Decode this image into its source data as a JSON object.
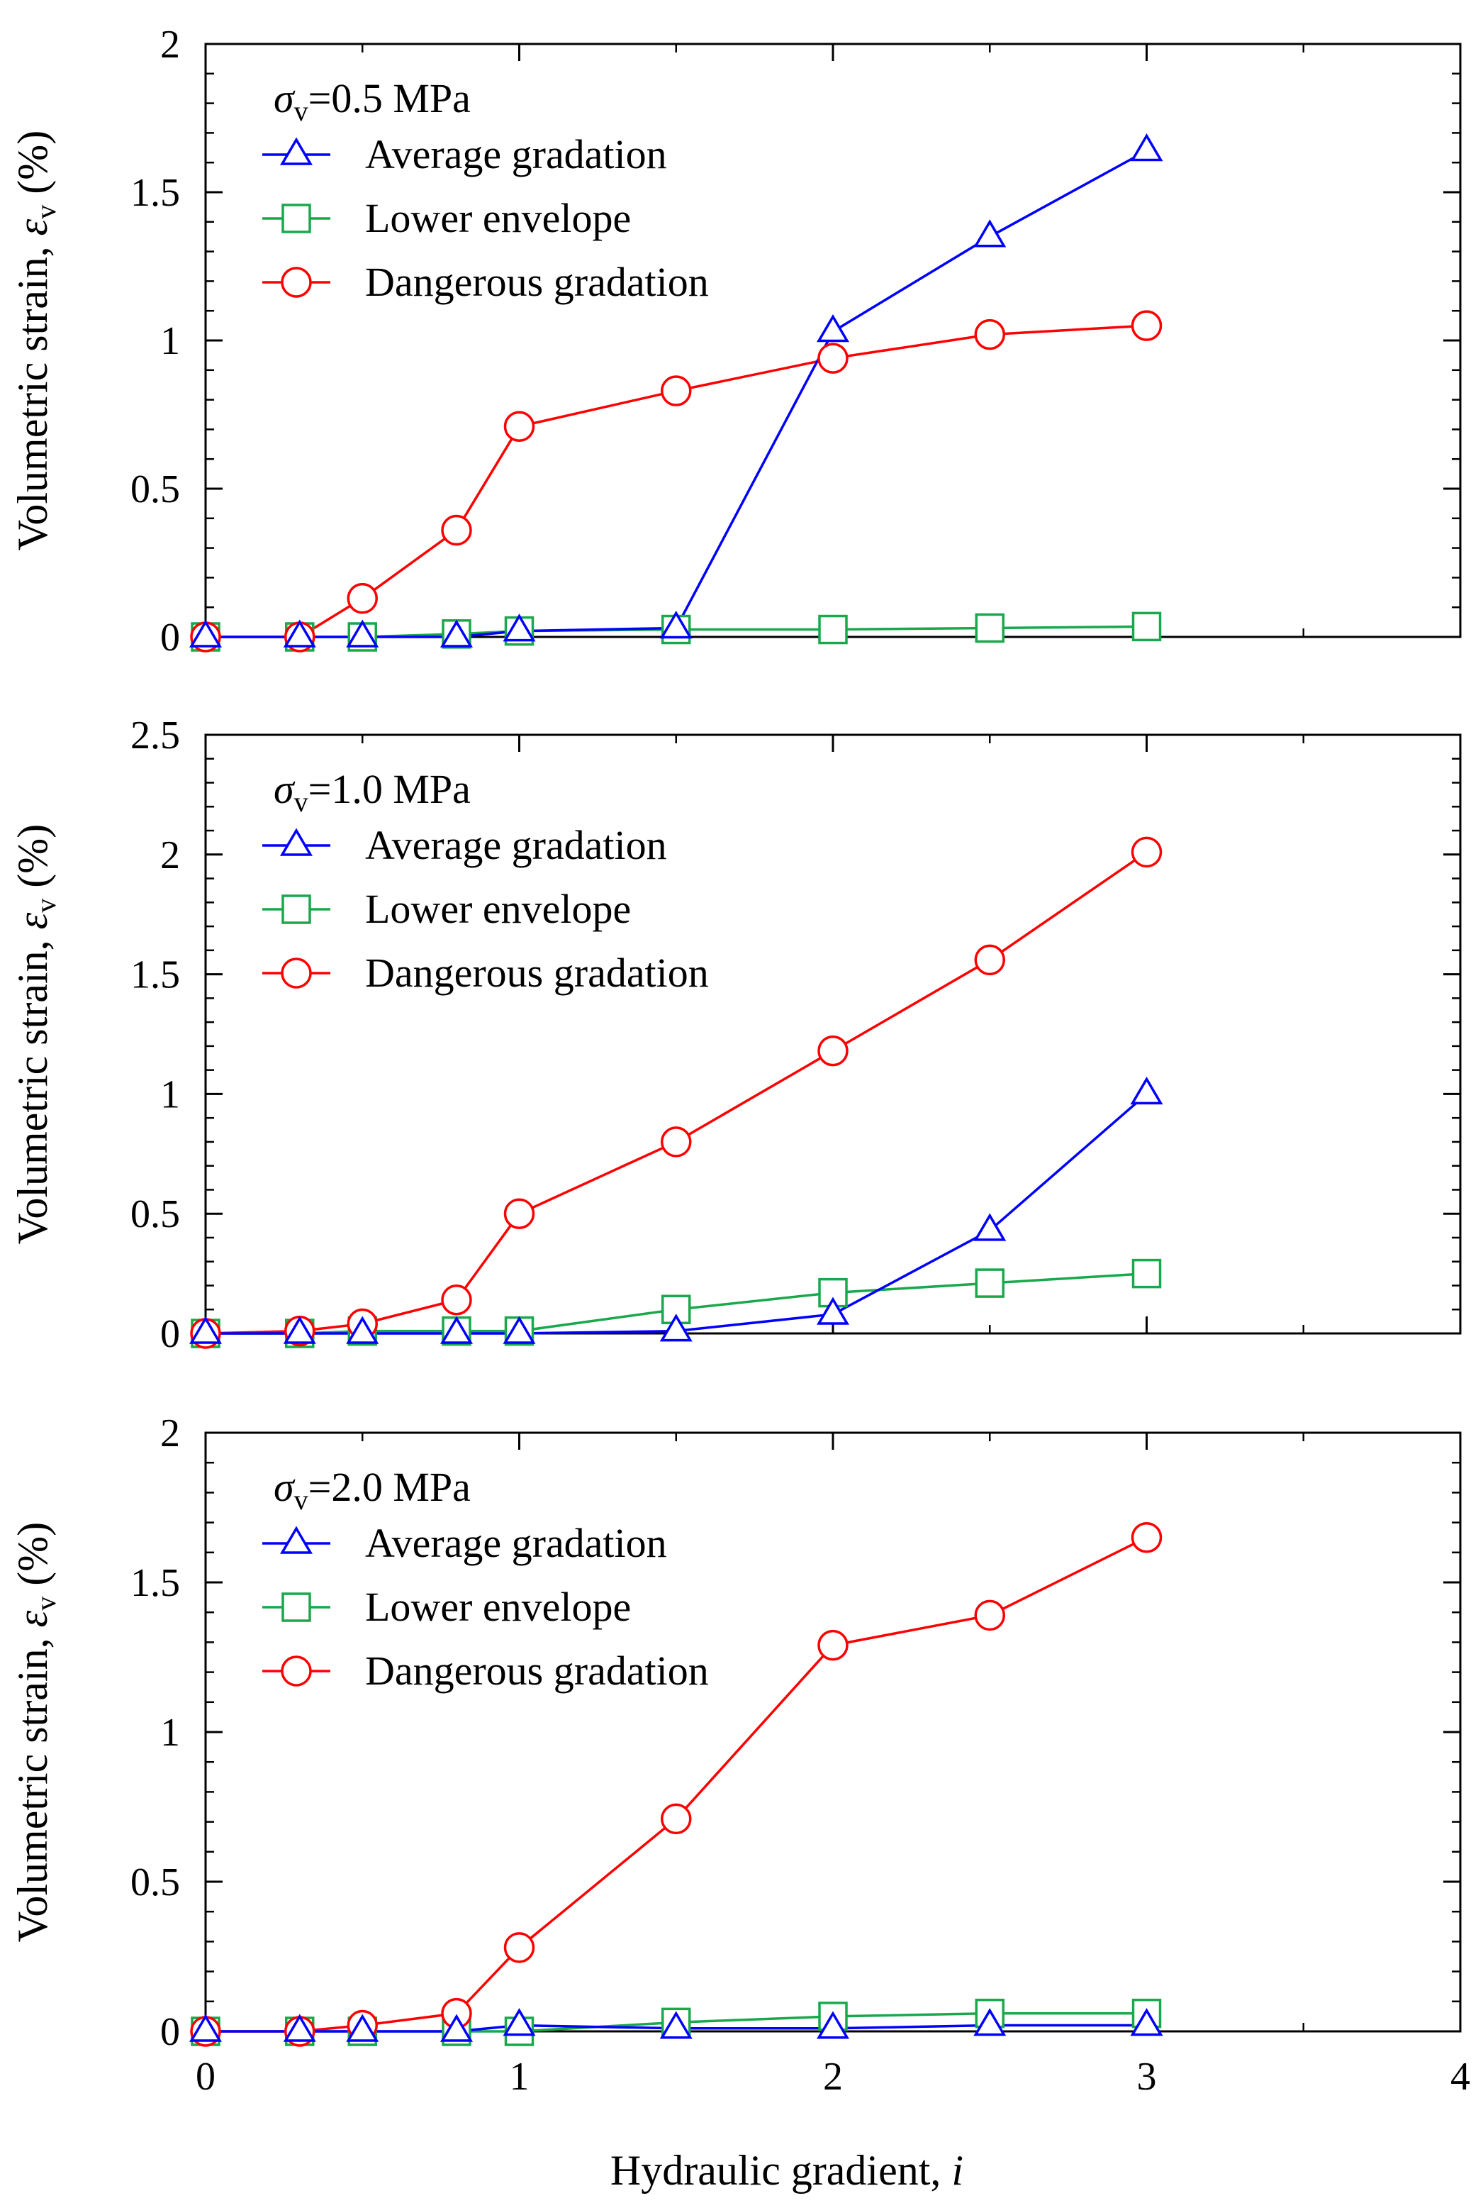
{
  "figure": {
    "xlabel_main": "Hydraulic gradient, ",
    "xlabel_var": "i",
    "x_ticks": [
      "0",
      "1",
      "2",
      "3",
      "4"
    ]
  },
  "chart_data": [
    {
      "type": "line",
      "stress_label": {
        "symbol": "σ",
        "subscript": "v",
        "value": "=0.5 MPa"
      },
      "ylabel": {
        "prefix": "Volumetric strain, ",
        "symbol": "ε",
        "subscript": "v",
        "suffix": " (%)"
      },
      "xlim": [
        0,
        4
      ],
      "ylim": [
        0,
        2
      ],
      "y_ticks": [
        "0",
        "0.5",
        "1",
        "1.5",
        "2"
      ],
      "series": [
        {
          "name": "Average gradation",
          "marker": "triangle",
          "color": "#0000ff",
          "x": [
            0,
            0.3,
            0.5,
            0.8,
            1.0,
            1.5,
            2.0,
            2.5,
            3.0
          ],
          "y": [
            0,
            0,
            0,
            0,
            0.02,
            0.03,
            1.03,
            1.35,
            1.64
          ]
        },
        {
          "name": "Lower envelope",
          "marker": "square",
          "color": "#19a84b",
          "x": [
            0,
            0.3,
            0.5,
            0.8,
            1.0,
            1.5,
            2.0,
            2.5,
            3.0
          ],
          "y": [
            0,
            0,
            0,
            0.01,
            0.02,
            0.025,
            0.025,
            0.03,
            0.035
          ]
        },
        {
          "name": "Dangerous gradation",
          "marker": "circle",
          "color": "#ff0000",
          "x": [
            0,
            0.3,
            0.5,
            0.8,
            1.0,
            1.5,
            2.0,
            2.5,
            3.0
          ],
          "y": [
            0,
            0,
            0.13,
            0.36,
            0.71,
            0.83,
            0.94,
            1.02,
            1.05
          ]
        }
      ]
    },
    {
      "type": "line",
      "stress_label": {
        "symbol": "σ",
        "subscript": "v",
        "value": "=1.0 MPa"
      },
      "ylabel": {
        "prefix": "Volumetric strain, ",
        "symbol": "ε",
        "subscript": "v",
        "suffix": " (%)"
      },
      "xlim": [
        0,
        4
      ],
      "ylim": [
        0,
        2.5
      ],
      "y_ticks": [
        "0",
        "0.5",
        "1",
        "1.5",
        "2",
        "2.5"
      ],
      "series": [
        {
          "name": "Average gradation",
          "marker": "triangle",
          "color": "#0000ff",
          "x": [
            0,
            0.3,
            0.5,
            0.8,
            1.0,
            1.5,
            2.0,
            2.5,
            3.0
          ],
          "y": [
            0,
            0,
            0,
            0,
            0,
            0.01,
            0.08,
            0.43,
            1.0
          ]
        },
        {
          "name": "Lower envelope",
          "marker": "square",
          "color": "#19a84b",
          "x": [
            0,
            0.3,
            0.5,
            0.8,
            1.0,
            1.5,
            2.0,
            2.5,
            3.0
          ],
          "y": [
            0,
            0,
            0.01,
            0.01,
            0.01,
            0.1,
            0.17,
            0.21,
            0.25
          ]
        },
        {
          "name": "Dangerous gradation",
          "marker": "circle",
          "color": "#ff0000",
          "x": [
            0,
            0.3,
            0.5,
            0.8,
            1.0,
            1.5,
            2.0,
            2.5,
            3.0
          ],
          "y": [
            0,
            0.01,
            0.04,
            0.14,
            0.5,
            0.8,
            1.18,
            1.56,
            2.01
          ]
        }
      ]
    },
    {
      "type": "line",
      "stress_label": {
        "symbol": "σ",
        "subscript": "v",
        "value": "=2.0 MPa"
      },
      "ylabel": {
        "prefix": "Volumetric strain, ",
        "symbol": "ε",
        "subscript": "v",
        "suffix": " (%)"
      },
      "xlim": [
        0,
        4
      ],
      "ylim": [
        0,
        2
      ],
      "y_ticks": [
        "0",
        "0.5",
        "1",
        "1.5",
        "2"
      ],
      "series": [
        {
          "name": "Average gradation",
          "marker": "triangle",
          "color": "#0000ff",
          "x": [
            0,
            0.3,
            0.5,
            0.8,
            1.0,
            1.5,
            2.0,
            2.5,
            3.0
          ],
          "y": [
            0,
            0,
            0,
            0,
            0.02,
            0.01,
            0.01,
            0.02,
            0.02
          ]
        },
        {
          "name": "Lower envelope",
          "marker": "square",
          "color": "#19a84b",
          "x": [
            0,
            0.3,
            0.5,
            0.8,
            1.0,
            1.5,
            2.0,
            2.5,
            3.0
          ],
          "y": [
            0,
            0,
            0,
            0,
            0,
            0.03,
            0.05,
            0.06,
            0.06
          ]
        },
        {
          "name": "Dangerous gradation",
          "marker": "circle",
          "color": "#ff0000",
          "x": [
            0,
            0.3,
            0.5,
            0.8,
            1.0,
            1.5,
            2.0,
            2.5,
            3.0
          ],
          "y": [
            0,
            0,
            0.02,
            0.06,
            0.28,
            0.71,
            1.29,
            1.39,
            1.65
          ]
        }
      ]
    }
  ]
}
